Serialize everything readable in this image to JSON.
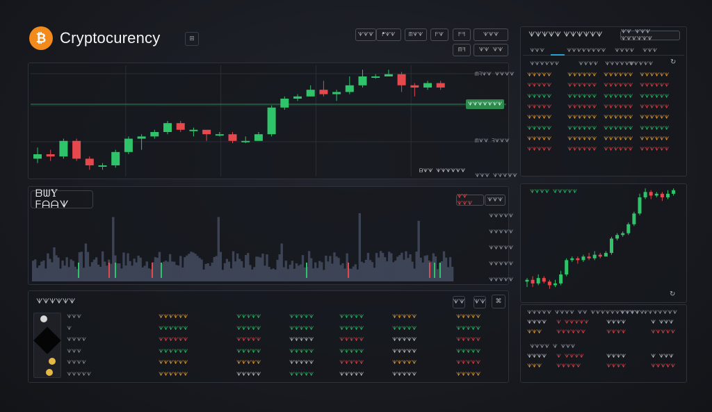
{
  "header": {
    "title": "Cryptocurency",
    "logo_glyph": "₿",
    "chip": "⊞",
    "toolbar": [
      "ᗐᗐᗐ",
      "ᖰᗐᗐ",
      "ᗰᗐᗐ",
      "ᖴᗐ",
      "ᖴᖷ",
      "ᗐᗐᗐ",
      "ᗰᖷ",
      "ᗐᗐ ᗐᗐ"
    ]
  },
  "main_chart": {
    "right_labels": [
      "ᗰᖷᗐᗐ ᗐᗐᗐᗐ",
      "ᗰᗐᗐ ᖷᗐᗐᗐ",
      "ᗐᗐᗐ ᗐᗐᗐᗐᗐ"
    ],
    "price_badge": "ᗐᗐᗐᗐᗐᗐᗐ",
    "footer_label": "ᗷᗐᗐ ᗐᗐᗐᗐᗐᗐ"
  },
  "chart_data": {
    "type": "candlestick",
    "candles": [
      [
        100,
        102,
        105,
        98
      ],
      [
        102,
        101,
        104,
        99
      ],
      [
        101,
        108,
        109,
        100
      ],
      [
        108,
        100,
        109,
        99
      ],
      [
        100,
        97,
        101,
        95
      ],
      [
        97,
        97,
        98,
        95
      ],
      [
        97,
        103,
        104,
        96
      ],
      [
        103,
        109,
        110,
        102
      ],
      [
        109,
        110,
        111,
        104
      ],
      [
        110,
        112,
        113,
        109
      ],
      [
        112,
        116,
        117,
        111
      ],
      [
        116,
        113,
        117,
        112
      ],
      [
        113,
        113,
        114,
        110
      ],
      [
        113,
        111,
        112,
        108
      ],
      [
        111,
        111,
        112,
        110
      ],
      [
        111,
        108,
        112,
        107
      ],
      [
        108,
        108,
        110,
        107
      ],
      [
        108,
        111,
        112,
        108
      ],
      [
        111,
        123,
        124,
        110
      ],
      [
        123,
        127,
        128,
        122
      ],
      [
        127,
        128,
        129,
        126
      ],
      [
        128,
        131,
        133,
        128
      ],
      [
        131,
        129,
        135,
        128
      ],
      [
        129,
        130,
        131,
        126
      ],
      [
        130,
        133,
        137,
        129
      ],
      [
        133,
        137,
        140,
        132
      ],
      [
        137,
        137,
        138,
        136
      ],
      [
        137,
        138,
        140,
        137
      ],
      [
        138,
        133,
        139,
        130
      ],
      [
        133,
        132,
        134,
        128
      ],
      [
        132,
        134,
        135,
        131
      ],
      [
        134,
        132,
        135,
        131
      ]
    ],
    "ylim": [
      92,
      142
    ]
  },
  "volume_panel": {
    "title": "ᗷᗯY ᖴᗩᗩᗐ",
    "controls": [
      "ᗐᗐ ᗐᗐᗐ",
      "ᗐᗐᗐ"
    ],
    "right_ticks": [
      "ᗐᗐᗐᗐᗐ",
      "ᗐᗐᗐᗐᗐ",
      "ᗐᗐᗐᗐᗐ",
      "ᗐᗐᗐᗐᗐ",
      "ᗐᗐᗐᗐᗐ"
    ],
    "ylim": [
      0,
      100
    ]
  },
  "assets_table": {
    "title": "ᗐᗐᗐᗐᗐᗐ",
    "buttons": [
      "ᗐᗐ",
      "ᗐᗐ",
      "⌘"
    ],
    "rows": [
      {
        "name": "ᗐᗐᗐ",
        "cols": [
          {
            "v": "ᗐᗐᗐᗐᗐᗐ",
            "c": "org"
          },
          {
            "v": "ᗐᗐᗐᗐᗐ",
            "c": "grn"
          },
          {
            "v": "ᗐᗐᗐᗐᗐ",
            "c": "grn"
          },
          {
            "v": "ᗐᗐᗐᗐᗐ",
            "c": "grn"
          },
          {
            "v": "ᗐᗐᗐᗐᗐ",
            "c": "org"
          },
          {
            "v": "ᗐᗐᗐᗐᗐ",
            "c": "org"
          }
        ]
      },
      {
        "name": "ᗐ",
        "cols": [
          {
            "v": "ᗐᗐᗐᗐᗐᗐ",
            "c": "grn"
          },
          {
            "v": "ᗐᗐᗐᗐᗐ",
            "c": "grn"
          },
          {
            "v": "ᗐᗐᗐᗐᗐ",
            "c": "grn"
          },
          {
            "v": "ᗐᗐᗐᗐᗐ",
            "c": "grn"
          },
          {
            "v": "ᗐᗐᗐᗐᗐ",
            "c": "grn"
          },
          {
            "v": "ᗐᗐᗐᗐᗐ",
            "c": "grn"
          }
        ]
      },
      {
        "name": "ᗐᗐᗐᗐ",
        "cols": [
          {
            "v": "ᗐᗐᗐᗐᗐᗐ",
            "c": "red"
          },
          {
            "v": "ᗐᗐᗐᗐᗐ",
            "c": "red"
          },
          {
            "v": "ᗐᗐᗐᗐᗐ",
            "c": "wht"
          },
          {
            "v": "ᗐᗐᗐᗐᗐ",
            "c": "red"
          },
          {
            "v": "ᗐᗐᗐᗐᗐ",
            "c": "wht"
          },
          {
            "v": "ᗐᗐᗐᗐᗐ",
            "c": "red"
          }
        ]
      },
      {
        "name": "ᗐᗐᗐ",
        "cols": [
          {
            "v": "ᗐᗐᗐᗐᗐᗐ",
            "c": "grn"
          },
          {
            "v": "ᗐᗐᗐᗐᗐ",
            "c": "grn"
          },
          {
            "v": "ᗐᗐᗐᗐᗐ",
            "c": "grn"
          },
          {
            "v": "ᗐᗐᗐᗐᗐ",
            "c": "grn"
          },
          {
            "v": "ᗐᗐᗐᗐᗐ",
            "c": "wht"
          },
          {
            "v": "ᗐᗐᗐᗐᗐ",
            "c": "grn"
          }
        ]
      },
      {
        "name": "ᗐᗐᗐᗐ",
        "cols": [
          {
            "v": "ᗐᗐᗐᗐᗐᗐ",
            "c": "org"
          },
          {
            "v": "ᗐᗐᗐᗐᗐ",
            "c": "org"
          },
          {
            "v": "ᗐᗐᗐᗐᗐ",
            "c": "wht"
          },
          {
            "v": "ᗐᗐᗐᗐᗐ",
            "c": "red"
          },
          {
            "v": "ᗐᗐᗐᗐᗐ",
            "c": "org"
          },
          {
            "v": "ᗐᗐᗐᗐᗐ",
            "c": "red"
          }
        ]
      },
      {
        "name": "ᗐᗐᗐᗐᗐ",
        "cols": [
          {
            "v": "ᗐᗐᗐᗐᗐᗐ",
            "c": "org"
          },
          {
            "v": "ᗐᗐᗐᗐᗐ",
            "c": "wht"
          },
          {
            "v": "ᗐᗐᗐᗐᗐ",
            "c": "grn"
          },
          {
            "v": "ᗐᗐᗐᗐᗐ",
            "c": "wht"
          },
          {
            "v": "ᗐᗐᗐᗐᗐ",
            "c": "wht"
          },
          {
            "v": "ᗐᗐᗐᗐᗐ",
            "c": "org"
          }
        ]
      }
    ]
  },
  "orderbook": {
    "title": "ᗐᗐᗐᗐᗐ ᗐᗐᗐᗐᗐᗐ",
    "selector": "ᗐᗐ ᗐᗐᗐ ᗐᗐᗐᗐᗐᗐ",
    "tabs": [
      "ᗐᗐᗐ",
      "ᗐᗐᗐᗐᗐᗐᗐᗐ",
      "ᗐᗐᗐᗐ",
      "ᗐᗐᗐ"
    ],
    "headers": [
      "ᗐᗐᗐᗐᗐᗐ",
      "ᗐᗐᗐᗐ",
      "ᗐᗐᗐᗐᗐᗐ",
      "ᗐᗐᗐᗐᗐ"
    ],
    "rows": [
      {
        "c": "org",
        "v": [
          "ᗐᗐᗐᗐᗐ",
          "ᗐᗐᗐᗐᗐᗐ",
          "ᗐᗐᗐᗐᗐᗐ",
          "ᗐᗐᗐᗐᗐᗐ"
        ]
      },
      {
        "c": "red",
        "v": [
          "ᗐᗐᗐᗐᗐ",
          "ᗐᗐᗐᗐᗐᗐ",
          "ᗐᗐᗐᗐᗐᗐ",
          "ᗐᗐᗐᗐᗐᗐ"
        ]
      },
      {
        "c": "grn",
        "v": [
          "ᗐᗐᗐᗐᗐ",
          "ᗐᗐᗐᗐᗐᗐ",
          "ᗐᗐᗐᗐᗐᗐ",
          "ᗐᗐᗐᗐᗐᗐ"
        ]
      },
      {
        "c": "red",
        "v": [
          "ᗐᗐᗐᗐᗐ",
          "ᗐᗐᗐᗐᗐᗐ",
          "ᗐᗐᗐᗐᗐᗐ",
          "ᗐᗐᗐᗐᗐᗐ"
        ]
      },
      {
        "c": "org",
        "v": [
          "ᗐᗐᗐᗐᗐ",
          "ᗐᗐᗐᗐᗐᗐ",
          "ᗐᗐᗐᗐᗐᗐ",
          "ᗐᗐᗐᗐᗐᗐ"
        ]
      },
      {
        "c": "grn",
        "v": [
          "ᗐᗐᗐᗐᗐ",
          "ᗐᗐᗐᗐᗐᗐ",
          "ᗐᗐᗐᗐᗐᗐ",
          "ᗐᗐᗐᗐᗐᗐ"
        ]
      },
      {
        "c": "org",
        "v": [
          "ᗐᗐᗐᗐᗐ",
          "ᗐᗐᗐᗐᗐᗐ",
          "ᗐᗐᗐᗐᗐᗐ",
          "ᗐᗐᗐᗐᗐᗐ"
        ]
      },
      {
        "c": "red",
        "v": [
          "ᗐᗐᗐᗐᗐ",
          "ᗐᗐᗐᗐᗐᗐ",
          "ᗐᗐᗐᗐᗐᗐ",
          "ᗐᗐᗐᗐᗐᗐ"
        ]
      }
    ]
  },
  "mini_chart": {
    "title": "ᗐᗐᗐᗐ ᗐᗐᗐᗐᗐ",
    "candles": [
      [
        100,
        101,
        102,
        97
      ],
      [
        101,
        99,
        103,
        97
      ],
      [
        99,
        102,
        104,
        98
      ],
      [
        102,
        100,
        103,
        99
      ],
      [
        100,
        98,
        101,
        96
      ],
      [
        98,
        99,
        101,
        97
      ],
      [
        99,
        104,
        106,
        98
      ],
      [
        104,
        112,
        113,
        103
      ],
      [
        112,
        113,
        114,
        111
      ],
      [
        113,
        112,
        114,
        110
      ],
      [
        112,
        114,
        115,
        111
      ],
      [
        114,
        113,
        116,
        112
      ],
      [
        113,
        115,
        117,
        112
      ],
      [
        115,
        114,
        116,
        113
      ],
      [
        114,
        116,
        117,
        114
      ],
      [
        116,
        124,
        125,
        115
      ],
      [
        124,
        126,
        127,
        123
      ],
      [
        126,
        127,
        128,
        125
      ],
      [
        127,
        132,
        133,
        126
      ],
      [
        132,
        138,
        139,
        131
      ],
      [
        138,
        147,
        149,
        137
      ],
      [
        147,
        150,
        152,
        146
      ],
      [
        150,
        148,
        151,
        146
      ],
      [
        148,
        149,
        150,
        147
      ],
      [
        149,
        147,
        150,
        145
      ],
      [
        147,
        149,
        151,
        146
      ],
      [
        149,
        151,
        152,
        148
      ]
    ],
    "ylim": [
      92,
      154
    ]
  },
  "trades": {
    "headers": [
      "ᗐᗐᗐᗐᗐ ᗐᗐᗐᗐ ᗐᗐ ᗐᗐᗐᗐᗐᗐᗐᗐᗐᗐᗐ",
      "ᗐᗐᗐᗐ ᗐᗐᗐᗐᗐᗐᗐ"
    ],
    "rows1": [
      [
        {
          "v": "ᗐᗐᗐᗐ",
          "c": "wht"
        },
        {
          "v": "ᗐ ᗐᗐᗐᗐᗐ",
          "c": "red"
        },
        {
          "v": "ᗐᗐᗐᗐ",
          "c": "wht"
        },
        {
          "v": "ᗐ ᗐᗐᗐ",
          "c": "wht"
        }
      ],
      [
        {
          "v": "ᗐᗐᗐ",
          "c": "org"
        },
        {
          "v": "ᗐᗐᗐᗐᗐᗐ",
          "c": "red"
        },
        {
          "v": "ᗐᗐᗐᗐ",
          "c": "red"
        },
        {
          "v": "ᗐᗐᗐᗐᗐ",
          "c": "red"
        }
      ]
    ],
    "sub_header": "ᗐᗐᗐᗐ ᗐ ᗐᗐᗐ",
    "rows2": [
      [
        {
          "v": "ᗐᗐᗐᗐ",
          "c": "wht"
        },
        {
          "v": "ᗐ ᗐᗐᗐᗐ",
          "c": "red"
        },
        {
          "v": "ᗐᗐᗐᗐ",
          "c": "wht"
        },
        {
          "v": "ᗐ ᗐᗐᗐ",
          "c": "wht"
        }
      ],
      [
        {
          "v": "ᗐᗐᗐ",
          "c": "org"
        },
        {
          "v": "ᗐᗐᗐᗐᗐ",
          "c": "red"
        },
        {
          "v": "ᗐᗐᗐᗐ",
          "c": "red"
        },
        {
          "v": "ᗐᗐᗐᗐᗐ",
          "c": "red"
        }
      ]
    ]
  },
  "colors": {
    "up": "#2fc36a",
    "down": "#e5484d",
    "grid": "#2b2e36",
    "volume": "#3d4456"
  }
}
